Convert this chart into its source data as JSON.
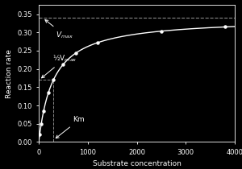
{
  "background_color": "#000000",
  "axes_color": "#000000",
  "line_color": "#ffffff",
  "text_color": "#ffffff",
  "dashed_color": "#888888",
  "Vmax": 0.34,
  "Km": 300,
  "xlabel": "Substrate concentration",
  "ylabel": "Reaction rate",
  "xlim": [
    0,
    4000
  ],
  "ylim": [
    0,
    0.375
  ],
  "yticks": [
    0.0,
    0.05,
    0.1,
    0.15,
    0.2,
    0.25,
    0.3,
    0.35
  ],
  "xticks": [
    0,
    1000,
    2000,
    3000,
    4000
  ],
  "marker_S": [
    20,
    50,
    100,
    200,
    300,
    500,
    750,
    1200,
    2500,
    3800
  ],
  "label_fontsize": 6.5,
  "tick_fontsize": 6,
  "annot_fontsize": 6.5,
  "Vmax_label": "$V_{max}$",
  "half_Vmax_label": "½V$_{max}$",
  "Km_label": "Km"
}
